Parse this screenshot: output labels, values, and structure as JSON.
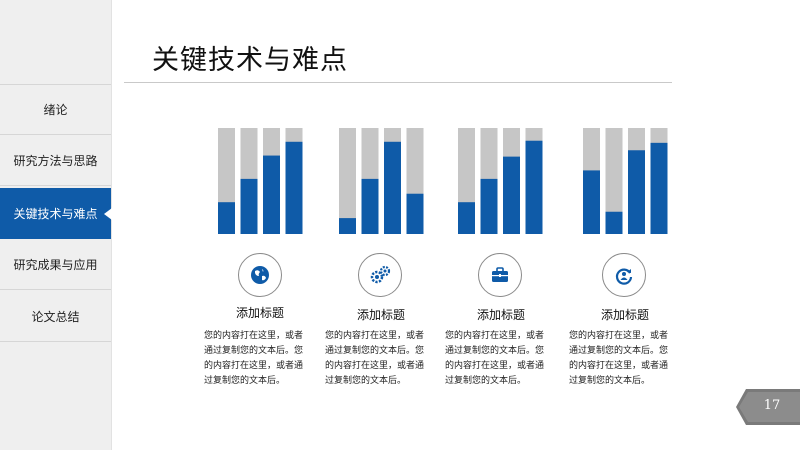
{
  "sidebar": {
    "items": [
      {
        "label": "绪论",
        "active": false
      },
      {
        "label": "研究方法与思路",
        "active": false
      },
      {
        "label": "关键技术与难点",
        "active": true
      },
      {
        "label": "研究成果与应用",
        "active": false
      },
      {
        "label": "论文总结",
        "active": false
      }
    ]
  },
  "header": {
    "title": "关键技术与难点"
  },
  "colors": {
    "accent": "#0f5ba8",
    "track": "#c6c6c6"
  },
  "chart_data": {
    "type": "bar",
    "ylim": [
      0,
      1
    ],
    "groups": [
      {
        "values": [
          0.3,
          0.52,
          0.74,
          0.87
        ]
      },
      {
        "values": [
          0.15,
          0.52,
          0.87,
          0.38
        ]
      },
      {
        "values": [
          0.3,
          0.52,
          0.73,
          0.88
        ]
      },
      {
        "values": [
          0.6,
          0.21,
          0.79,
          0.86
        ]
      }
    ]
  },
  "columns": [
    {
      "icon": "globe-icon",
      "title": "添加标题",
      "lines": [
        "您的内容打在这里，或者",
        "通过复制您的文本后。您",
        "的内容打在这里，或者通",
        "过复制您的文本后。"
      ]
    },
    {
      "icon": "gears-icon",
      "title": "添加标题",
      "lines": [
        "您的内容打在这里，或者",
        "通过复制您的文本后。您",
        "的内容打在这里，或者通",
        "过复制您的文本后。"
      ]
    },
    {
      "icon": "briefcase-icon",
      "title": "添加标题",
      "lines": [
        "您的内容打在这里，或者",
        "通过复制您的文本后。您",
        "的内容打在这里，或者通",
        "过复制您的文本后。"
      ]
    },
    {
      "icon": "refresh-person-icon",
      "title": "添加标题",
      "lines": [
        "您的内容打在这里，或者",
        "通过复制您的文本后。您",
        "的内容打在这里，或者通",
        "过复制您的文本后。"
      ]
    }
  ],
  "footer": {
    "page_number": "17"
  }
}
